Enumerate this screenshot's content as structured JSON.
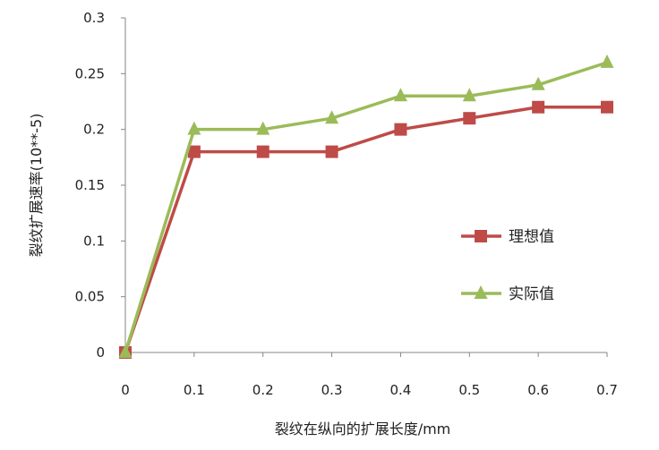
{
  "chart_data": {
    "type": "line",
    "title": "",
    "xlabel": "裂纹在纵向的扩展长度/mm",
    "ylabel": "裂纹扩展速率(10**-5)",
    "x": [
      0,
      0.1,
      0.2,
      0.3,
      0.4,
      0.5,
      0.6,
      0.7
    ],
    "x_tick_labels": [
      "0",
      "0.1",
      "0.2",
      "0.3",
      "0.4",
      "0.5",
      "0.6",
      "0.7"
    ],
    "y_tick_labels": [
      "0",
      "0.05",
      "0.1",
      "0.15",
      "0.2",
      "0.25",
      "0.3"
    ],
    "xlim": [
      0,
      0.7
    ],
    "ylim": [
      0,
      0.3
    ],
    "grid": false,
    "legend_position": "right",
    "series": [
      {
        "name": "理想值",
        "marker": "square",
        "color": "#be4b48",
        "values": [
          0,
          0.18,
          0.18,
          0.18,
          0.2,
          0.21,
          0.22,
          0.22
        ]
      },
      {
        "name": "实际值",
        "marker": "triangle",
        "color": "#9bbb59",
        "values": [
          0,
          0.2,
          0.2,
          0.21,
          0.23,
          0.23,
          0.24,
          0.26
        ]
      }
    ]
  }
}
